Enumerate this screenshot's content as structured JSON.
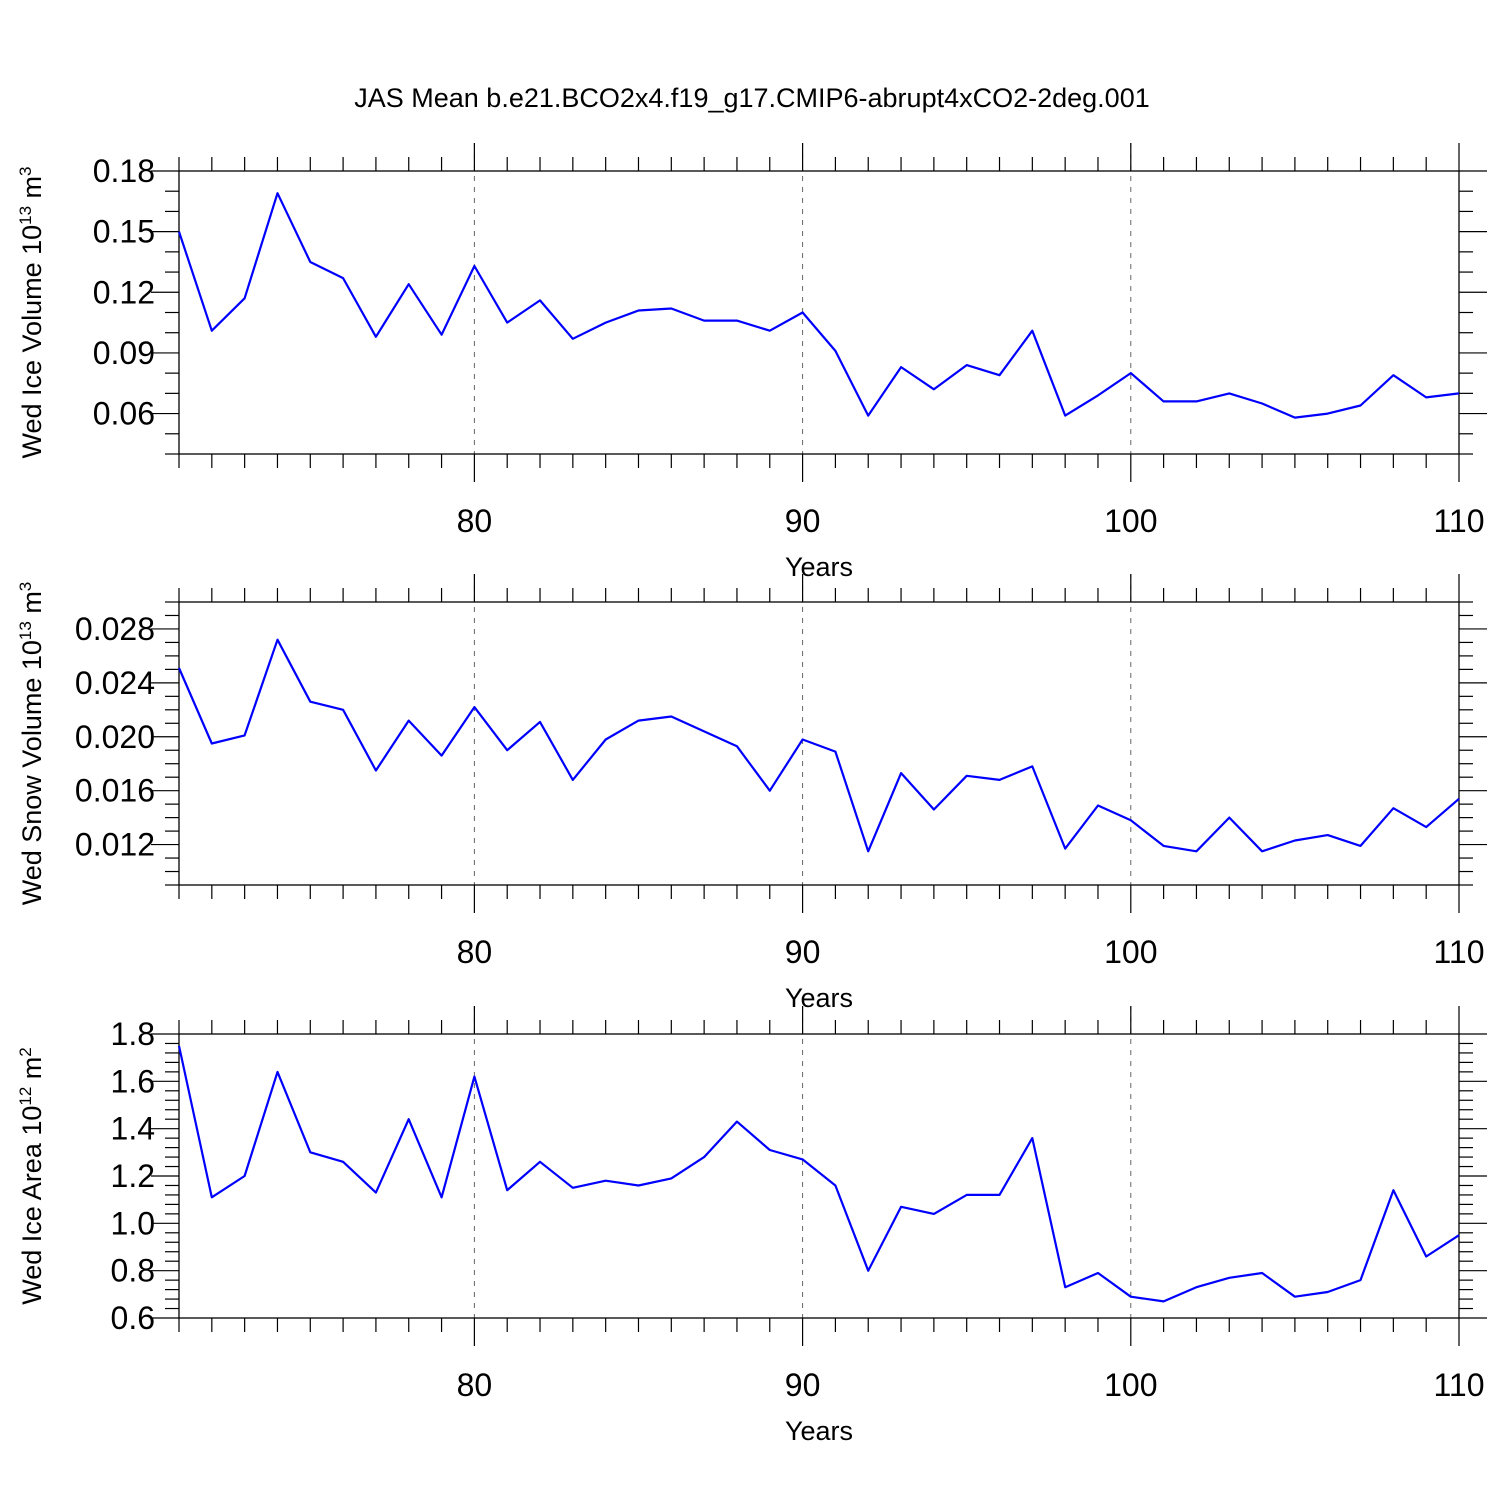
{
  "title": "JAS Mean b.e21.BCO2x4.f19_g17.CMIP6-abrupt4xCO2-2deg.001",
  "colors": {
    "line": "#0000ff",
    "axes": "#000000"
  },
  "chart_data": [
    {
      "type": "line",
      "ylabel_main": "Wed Ice Volume 10",
      "ylabel_exp": "13",
      "ylabel_unit": " m",
      "ylabel_unit_exp": "3",
      "xlabel": "Years",
      "xlim": [
        71,
        110
      ],
      "ylim": [
        0.04,
        0.18
      ],
      "yticks": [
        0.06,
        0.09,
        0.12,
        0.15,
        0.18
      ],
      "ytick_labels": [
        "0.06",
        "0.09",
        "0.12",
        "0.15",
        "0.18"
      ],
      "yminor_step": 0.01,
      "xticks": [
        80,
        90,
        100,
        110
      ],
      "xtick_labels": [
        "80",
        "90",
        "100",
        "110"
      ],
      "x": [
        71,
        72,
        73,
        74,
        75,
        76,
        77,
        78,
        79,
        80,
        81,
        82,
        83,
        84,
        85,
        86,
        87,
        88,
        89,
        90,
        91,
        92,
        93,
        94,
        95,
        96,
        97,
        98,
        99,
        100,
        101,
        102,
        103,
        104,
        105,
        106,
        107,
        108,
        109,
        110
      ],
      "values": [
        0.15,
        0.101,
        0.117,
        0.169,
        0.135,
        0.127,
        0.098,
        0.124,
        0.099,
        0.133,
        0.105,
        0.116,
        0.097,
        0.105,
        0.111,
        0.112,
        0.106,
        0.106,
        0.101,
        0.11,
        0.091,
        0.059,
        0.083,
        0.072,
        0.084,
        0.079,
        0.101,
        0.059,
        0.069,
        0.08,
        0.066,
        0.066,
        0.07,
        0.065,
        0.058,
        0.06,
        0.064,
        0.079,
        0.068,
        0.07
      ]
    },
    {
      "type": "line",
      "ylabel_main": "Wed Snow Volume 10",
      "ylabel_exp": "13",
      "ylabel_unit": " m",
      "ylabel_unit_exp": "3",
      "xlabel": "Years",
      "xlim": [
        71,
        110
      ],
      "ylim": [
        0.009,
        0.03
      ],
      "yticks": [
        0.012,
        0.016,
        0.02,
        0.024,
        0.028
      ],
      "ytick_labels": [
        "0.012",
        "0.016",
        "0.020",
        "0.024",
        "0.028"
      ],
      "yminor_step": 0.001,
      "xticks": [
        80,
        90,
        100,
        110
      ],
      "xtick_labels": [
        "80",
        "90",
        "100",
        "110"
      ],
      "x": [
        71,
        72,
        73,
        74,
        75,
        76,
        77,
        78,
        79,
        80,
        81,
        82,
        83,
        84,
        85,
        86,
        87,
        88,
        89,
        90,
        91,
        92,
        93,
        94,
        95,
        96,
        97,
        98,
        99,
        100,
        101,
        102,
        103,
        104,
        105,
        106,
        107,
        108,
        109,
        110
      ],
      "values": [
        0.0251,
        0.0195,
        0.0201,
        0.0272,
        0.0226,
        0.022,
        0.0175,
        0.0212,
        0.0186,
        0.0222,
        0.019,
        0.0211,
        0.0168,
        0.0198,
        0.0212,
        0.0215,
        0.0204,
        0.0193,
        0.016,
        0.0198,
        0.0189,
        0.0115,
        0.0173,
        0.0146,
        0.0171,
        0.0168,
        0.0178,
        0.0117,
        0.0149,
        0.0138,
        0.0119,
        0.0115,
        0.014,
        0.0115,
        0.0123,
        0.0127,
        0.0119,
        0.0147,
        0.0133,
        0.0154
      ]
    },
    {
      "type": "line",
      "ylabel_main": "Wed Ice Area 10",
      "ylabel_exp": "12",
      "ylabel_unit": " m",
      "ylabel_unit_exp": "2",
      "xlabel": "Years",
      "xlim": [
        71,
        110
      ],
      "ylim": [
        0.6,
        1.8
      ],
      "yticks": [
        0.6,
        0.8,
        1.0,
        1.2,
        1.4,
        1.6,
        1.8
      ],
      "ytick_labels": [
        "0.6",
        "0.8",
        "1.0",
        "1.2",
        "1.4",
        "1.6",
        "1.8"
      ],
      "yminor_step": 0.04,
      "xticks": [
        80,
        90,
        100,
        110
      ],
      "xtick_labels": [
        "80",
        "90",
        "100",
        "110"
      ],
      "x": [
        71,
        72,
        73,
        74,
        75,
        76,
        77,
        78,
        79,
        80,
        81,
        82,
        83,
        84,
        85,
        86,
        87,
        88,
        89,
        90,
        91,
        92,
        93,
        94,
        95,
        96,
        97,
        98,
        99,
        100,
        101,
        102,
        103,
        104,
        105,
        106,
        107,
        108,
        109,
        110
      ],
      "values": [
        1.75,
        1.11,
        1.2,
        1.64,
        1.3,
        1.26,
        1.13,
        1.44,
        1.11,
        1.62,
        1.14,
        1.26,
        1.15,
        1.18,
        1.16,
        1.19,
        1.28,
        1.43,
        1.31,
        1.27,
        1.16,
        0.8,
        1.07,
        1.04,
        1.12,
        1.12,
        1.36,
        0.73,
        0.79,
        0.69,
        0.67,
        0.73,
        0.77,
        0.79,
        0.69,
        0.71,
        0.76,
        1.14,
        0.86,
        0.95
      ]
    }
  ]
}
